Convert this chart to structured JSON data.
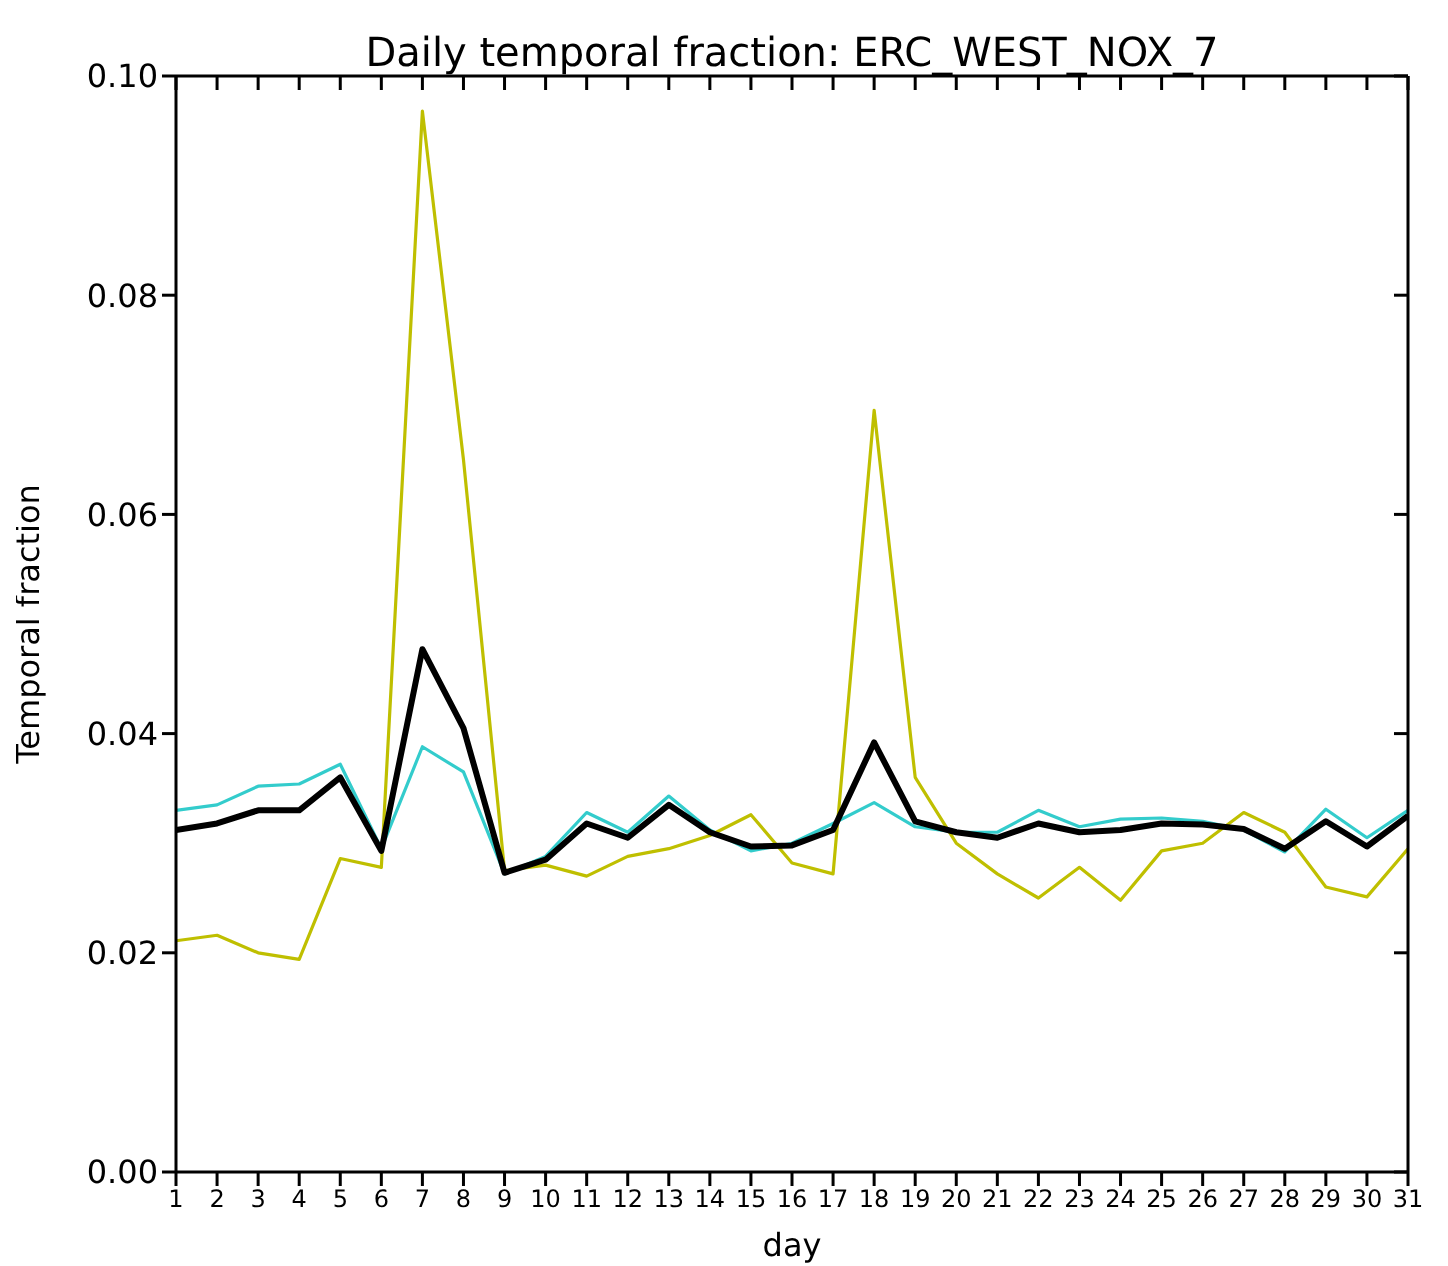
{
  "chart_data": {
    "type": "line",
    "title": "Daily temporal fraction: ERC_WEST_NOX_7",
    "xlabel": "day",
    "ylabel": "Temporal fraction",
    "x": [
      1,
      2,
      3,
      4,
      5,
      6,
      7,
      8,
      9,
      10,
      11,
      12,
      13,
      14,
      15,
      16,
      17,
      18,
      19,
      20,
      21,
      22,
      23,
      24,
      25,
      26,
      27,
      28,
      29,
      30,
      31
    ],
    "series": [
      {
        "color": "#33cccc",
        "values": [
          0.033,
          0.0335,
          0.0352,
          0.0354,
          0.0372,
          0.0295,
          0.0388,
          0.0365,
          0.0272,
          0.0288,
          0.0328,
          0.031,
          0.0343,
          0.0312,
          0.0293,
          0.03,
          0.0318,
          0.0337,
          0.0315,
          0.031,
          0.031,
          0.033,
          0.0315,
          0.0322,
          0.0323,
          0.032,
          0.0312,
          0.0292,
          0.0331,
          0.0305,
          0.033
        ]
      },
      {
        "color": "#bfbf00",
        "values": [
          0.0211,
          0.0216,
          0.02,
          0.0194,
          0.0286,
          0.0278,
          0.0968,
          0.065,
          0.0275,
          0.028,
          0.027,
          0.0288,
          0.0295,
          0.0307,
          0.0326,
          0.0282,
          0.0272,
          0.0695,
          0.036,
          0.03,
          0.0272,
          0.025,
          0.0278,
          0.0248,
          0.0293,
          0.03,
          0.0328,
          0.031,
          0.026,
          0.0251,
          0.0295
        ]
      },
      {
        "color": "#000000",
        "values": [
          0.0312,
          0.0318,
          0.033,
          0.033,
          0.036,
          0.0293,
          0.0477,
          0.0405,
          0.0273,
          0.0285,
          0.0318,
          0.0305,
          0.0335,
          0.031,
          0.0297,
          0.0298,
          0.0312,
          0.0392,
          0.032,
          0.031,
          0.0305,
          0.0318,
          0.031,
          0.0312,
          0.0318,
          0.0317,
          0.0313,
          0.0295,
          0.032,
          0.0297,
          0.0325
        ]
      }
    ],
    "xlim": [
      1,
      31
    ],
    "xticks": [
      1,
      2,
      3,
      4,
      5,
      6,
      7,
      8,
      9,
      10,
      11,
      12,
      13,
      14,
      15,
      16,
      17,
      18,
      19,
      20,
      21,
      22,
      23,
      24,
      25,
      26,
      27,
      28,
      29,
      30,
      31
    ],
    "ylim": [
      0,
      0.1
    ],
    "yticks": [
      {
        "value": 0,
        "label": "0.00"
      },
      {
        "value": 0.02,
        "label": "0.02"
      },
      {
        "value": 0.04,
        "label": "0.04"
      },
      {
        "value": 0.06,
        "label": "0.06"
      },
      {
        "value": 0.08,
        "label": "0.08"
      },
      {
        "value": 0.1,
        "label": "0.10"
      }
    ],
    "grid": false,
    "legend": false,
    "marker": "none",
    "line_style": "solid"
  }
}
